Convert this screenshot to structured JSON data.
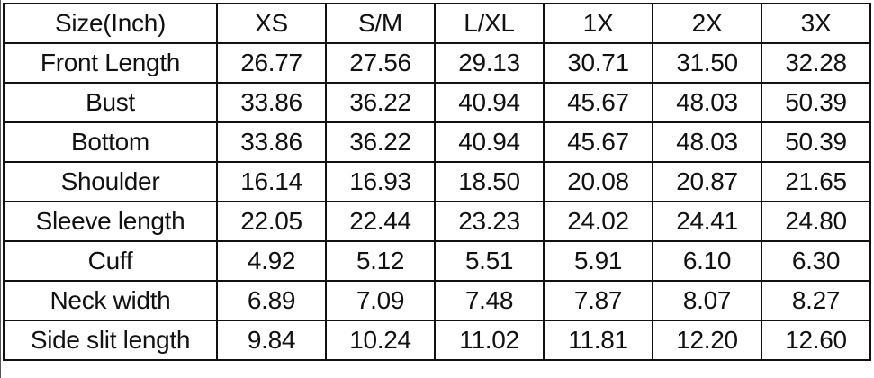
{
  "header": [
    "Size(Inch)",
    "XS",
    "S/M",
    "L/XL",
    "1X",
    "2X",
    "3X"
  ],
  "rows": [
    [
      "Front Length",
      "26.77",
      "27.56",
      "29.13",
      "30.71",
      "31.50",
      "32.28"
    ],
    [
      "Bust",
      "33.86",
      "36.22",
      "40.94",
      "45.67",
      "48.03",
      "50.39"
    ],
    [
      "Bottom",
      "33.86",
      "36.22",
      "40.94",
      "45.67",
      "48.03",
      "50.39"
    ],
    [
      "Shoulder",
      "16.14",
      "16.93",
      "18.50",
      "20.08",
      "20.87",
      "21.65"
    ],
    [
      "Sleeve length",
      "22.05",
      "22.44",
      "23.23",
      "24.02",
      "24.41",
      "24.80"
    ],
    [
      "Cuff",
      "4.92",
      "5.12",
      "5.51",
      "5.91",
      "6.10",
      "6.30"
    ],
    [
      "Neck width",
      "6.89",
      "7.09",
      "7.48",
      "7.87",
      "8.07",
      "8.27"
    ],
    [
      "Side slit length",
      "9.84",
      "10.24",
      "11.02",
      "11.81",
      "12.20",
      "12.60"
    ]
  ]
}
